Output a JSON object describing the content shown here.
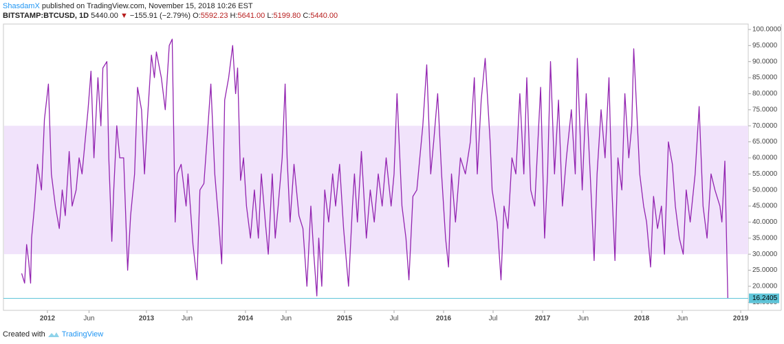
{
  "header": {
    "author": "ShasdamX",
    "published": "published on TradingView.com, November 15, 2018 10:26 EST",
    "symbol": "BITSTAMP:BTCUSD, 1D",
    "price": "5440.00",
    "change": "−155.91 (−2.79%)",
    "ohlc": [
      {
        "label": "O:",
        "value": "5592.23"
      },
      {
        "label": "H:",
        "value": "5641.00"
      },
      {
        "label": "L:",
        "value": "5199.80"
      },
      {
        "label": "C:",
        "value": "5440.00"
      }
    ]
  },
  "footer": {
    "text": "Created with",
    "brand": "TradingView"
  },
  "chart_data": {
    "type": "line",
    "color": "#9223b0",
    "x": [
      2011.74,
      2011.77,
      2011.79,
      2011.81,
      2011.83,
      2011.84,
      2011.87,
      2011.9,
      2011.94,
      2011.97,
      2012.01,
      2012.04,
      2012.08,
      2012.12,
      2012.15,
      2012.18,
      2012.22,
      2012.25,
      2012.29,
      2012.32,
      2012.35,
      2012.41,
      2012.44,
      2012.47,
      2012.51,
      2012.54,
      2012.56,
      2012.6,
      2012.62,
      2012.65,
      2012.67,
      2012.7,
      2012.73,
      2012.77,
      2012.81,
      2012.84,
      2012.88,
      2012.91,
      2012.95,
      2012.98,
      2013.01,
      2013.05,
      2013.08,
      2013.1,
      2013.15,
      2013.19,
      2013.23,
      2013.26,
      2013.29,
      2013.31,
      2013.35,
      2013.4,
      2013.42,
      2013.47,
      2013.51,
      2013.54,
      2013.58,
      2013.61,
      2013.65,
      2013.69,
      2013.73,
      2013.76,
      2013.79,
      2013.83,
      2013.87,
      2013.9,
      2013.92,
      2013.95,
      2013.98,
      2014.01,
      2014.05,
      2014.09,
      2014.13,
      2014.16,
      2014.2,
      2014.23,
      2014.27,
      2014.3,
      2014.33,
      2014.37,
      2014.4,
      2014.42,
      2014.45,
      2014.49,
      2014.54,
      2014.58,
      2014.62,
      2014.66,
      2014.69,
      2014.72,
      2014.74,
      2014.77,
      2014.8,
      2014.84,
      2014.88,
      2014.91,
      2014.95,
      2014.99,
      2015.04,
      2015.08,
      2015.1,
      2015.13,
      2015.17,
      2015.22,
      2015.26,
      2015.3,
      2015.34,
      2015.38,
      2015.42,
      2015.47,
      2015.5,
      2015.53,
      2015.58,
      2015.62,
      2015.65,
      2015.69,
      2015.73,
      2015.79,
      2015.83,
      2015.87,
      2015.9,
      2015.94,
      2015.98,
      2016.02,
      2016.05,
      2016.08,
      2016.12,
      2016.17,
      2016.22,
      2016.27,
      2016.31,
      2016.34,
      2016.38,
      2016.42,
      2016.47,
      2016.49,
      2016.54,
      2016.58,
      2016.61,
      2016.65,
      2016.69,
      2016.73,
      2016.77,
      2016.81,
      2016.84,
      2016.88,
      2016.92,
      2016.98,
      2017.02,
      2017.05,
      2017.08,
      2017.12,
      2017.16,
      2017.2,
      2017.24,
      2017.29,
      2017.33,
      2017.35,
      2017.4,
      2017.44,
      2017.48,
      2017.52,
      2017.55,
      2017.59,
      2017.63,
      2017.67,
      2017.7,
      2017.73,
      2017.76,
      2017.8,
      2017.83,
      2017.87,
      2017.9,
      2017.92,
      2017.95,
      2017.98,
      2018.02,
      2018.05,
      2018.09,
      2018.12,
      2018.16,
      2018.2,
      2018.23,
      2018.27,
      2018.31,
      2018.34,
      2018.38,
      2018.42,
      2018.45,
      2018.49,
      2018.54,
      2018.58,
      2018.62,
      2018.66,
      2018.7,
      2018.74,
      2018.79,
      2018.81,
      2018.84,
      2018.87
    ],
    "values": [
      24,
      21,
      33,
      28,
      21,
      35,
      45,
      58,
      50,
      72,
      83,
      55,
      45,
      38,
      50,
      42,
      62,
      45,
      50,
      60,
      55,
      75,
      87,
      60,
      85,
      70,
      88,
      90,
      60,
      34,
      50,
      70,
      60,
      60,
      25,
      42,
      55,
      82,
      75,
      55,
      72,
      92,
      85,
      93,
      85,
      75,
      95,
      97,
      40,
      55,
      58,
      45,
      55,
      33,
      22,
      50,
      52,
      65,
      83,
      55,
      40,
      27,
      78,
      85,
      95,
      80,
      88,
      53,
      60,
      45,
      35,
      50,
      35,
      55,
      40,
      30,
      55,
      35,
      45,
      60,
      83,
      60,
      40,
      58,
      42,
      38,
      20,
      45,
      30,
      17,
      35,
      20,
      50,
      40,
      55,
      45,
      58,
      38,
      20,
      45,
      55,
      40,
      62,
      35,
      50,
      40,
      55,
      45,
      60,
      45,
      55,
      80,
      45,
      35,
      22,
      48,
      50,
      70,
      89,
      55,
      65,
      80,
      55,
      35,
      26,
      55,
      40,
      60,
      55,
      65,
      85,
      55,
      78,
      91,
      65,
      50,
      40,
      22,
      45,
      38,
      60,
      55,
      80,
      55,
      85,
      50,
      45,
      82,
      35,
      55,
      90,
      55,
      78,
      45,
      60,
      75,
      55,
      91,
      50,
      80,
      55,
      28,
      55,
      75,
      60,
      85,
      50,
      28,
      60,
      50,
      80,
      60,
      70,
      94,
      75,
      55,
      45,
      40,
      26,
      48,
      38,
      45,
      30,
      65,
      58,
      45,
      35,
      30,
      50,
      40,
      55,
      76,
      45,
      35,
      55,
      50,
      45,
      40,
      59,
      16.2405
    ],
    "band": {
      "from": 30,
      "to": 70,
      "color": "#f1e3fb"
    },
    "last_value": 16.2405,
    "last_value_color": "#5ec4d8",
    "xlim": [
      2011.556,
      2019.076
    ],
    "ylim": [
      12.5,
      101.7
    ],
    "xticks": [
      2012,
      {
        "value": 2012.42,
        "label": "Jun"
      },
      2013,
      {
        "value": 2013.41,
        "label": "Jun"
      },
      2014,
      {
        "value": 2014.41,
        "label": "Jun"
      },
      2015,
      {
        "value": 2015.5,
        "label": "Jul"
      },
      2016,
      {
        "value": 2016.5,
        "label": "Jul"
      },
      2017,
      {
        "value": 2017.41,
        "label": "Jun"
      },
      2018,
      {
        "value": 2018.41,
        "label": "Jun"
      },
      2019
    ],
    "yticks": [
      {
        "value": 15,
        "label": "15.0000"
      },
      {
        "value": 20,
        "label": "20.0000"
      },
      {
        "value": 25,
        "label": "25.0000"
      },
      {
        "value": 30,
        "label": "30.0000"
      },
      {
        "value": 35,
        "label": "35.0000"
      },
      {
        "value": 40,
        "label": "40.0000"
      },
      {
        "value": 45,
        "label": "45.0000"
      },
      {
        "value": 50,
        "label": "50.0000"
      },
      {
        "value": 55,
        "label": "55.0000"
      },
      {
        "value": 60,
        "label": "60.0000"
      },
      {
        "value": 65,
        "label": "65.0000"
      },
      {
        "value": 70,
        "label": "70.0000"
      },
      {
        "value": 75,
        "label": "75.0000"
      },
      {
        "value": 80,
        "label": "80.0000"
      },
      {
        "value": 85,
        "label": "85.0000"
      },
      {
        "value": 90,
        "label": "90.0000"
      },
      {
        "value": 95,
        "label": "95.0000"
      },
      {
        "value": 100,
        "label": "100.0000"
      }
    ],
    "grid": false
  }
}
